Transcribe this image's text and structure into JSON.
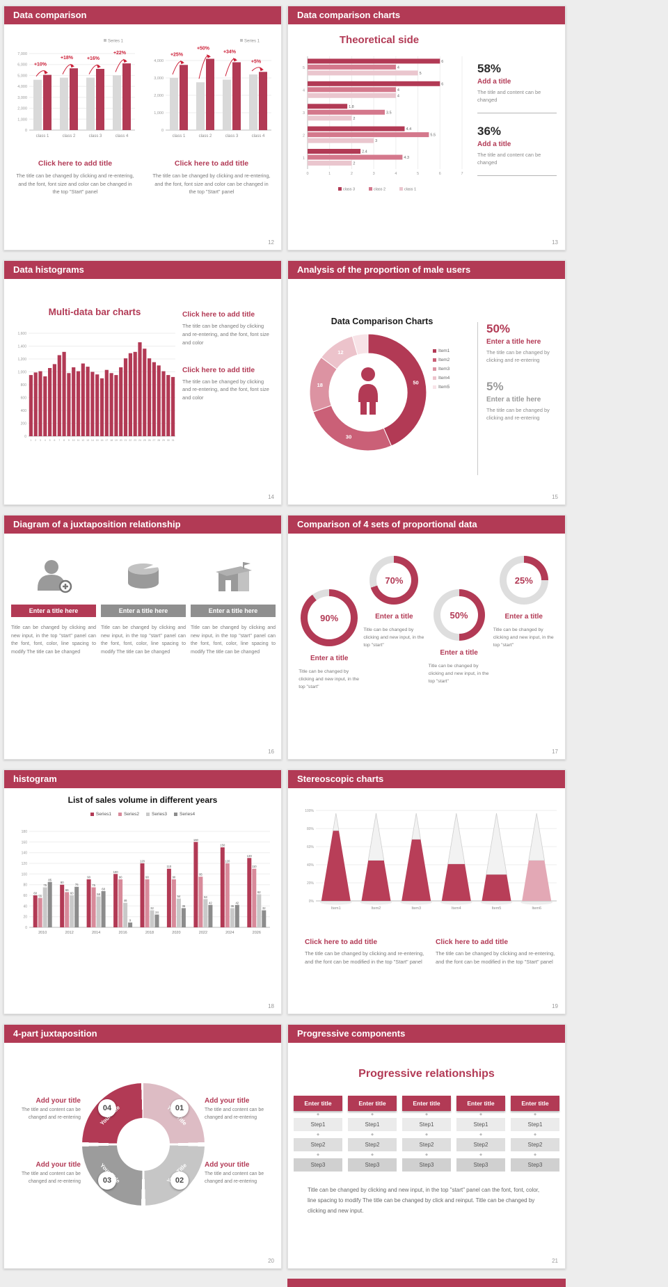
{
  "colors": {
    "accent": "#b23a55",
    "accent_red": "#cc2038",
    "bar_gray": "#d9d9d9",
    "series_pink": "#d4788c",
    "series_pink_light": "#eac6ce",
    "donut_colors": [
      "#b23a55",
      "#ca6077",
      "#dc93a2",
      "#ecc3cb",
      "#f7e3e7"
    ],
    "sales_series_colors": [
      "#b23a55",
      "#d88a9a",
      "#c9c9c9",
      "#8c8c8c"
    ],
    "cone_red": "#b83e58",
    "cone_pink": "#e3a8b5"
  },
  "slide1": {
    "header": "Data comparison",
    "page": "12",
    "panels": [
      {
        "title": "Click here to add title",
        "body": "The title can be changed by clicking and re-entering, and the font, font size and color can be changed in the top \"Start\" panel",
        "chart": {
          "type": "bar",
          "legend": "Series 1",
          "categories": [
            "class 1",
            "class 2",
            "class 3",
            "class 4"
          ],
          "series": [
            {
              "name": "base",
              "values": [
                4600,
                4800,
                4800,
                5000
              ]
            },
            {
              "name": "Series 1",
              "values": [
                5050,
                5650,
                5600,
                6100
              ]
            }
          ],
          "growth_labels": [
            "+10%",
            "+18%",
            "+16%",
            "+22%"
          ],
          "ylim": [
            0,
            7000
          ],
          "yticks": [
            0,
            1000,
            2000,
            3000,
            4000,
            5000,
            6000,
            7000
          ]
        }
      },
      {
        "title": "Click here to add title",
        "body": "The title can be changed by clicking and re-entering, and the font, font size and color can be changed in the top \"Start\" panel",
        "chart": {
          "type": "bar",
          "legend": "Series 1",
          "categories": [
            "class 1",
            "class 2",
            "class 3",
            "class 4"
          ],
          "series": [
            {
              "name": "base",
              "values": [
                3000,
                2750,
                2900,
                3200
              ]
            },
            {
              "name": "Series 1",
              "values": [
                3750,
                4100,
                3900,
                3350
              ]
            }
          ],
          "growth_labels": [
            "+25%",
            "+50%",
            "+34%",
            "+5%"
          ],
          "ylim": [
            0,
            4400
          ],
          "yticks": [
            0,
            1000,
            2000,
            3000,
            4000
          ]
        }
      }
    ]
  },
  "slide2": {
    "header": "Data comparison charts",
    "page": "13",
    "chart_title": "Theoretical side",
    "chart": {
      "type": "bar-horizontal",
      "xlim": [
        0,
        7
      ],
      "categories": [
        "5",
        "4",
        "3",
        "2",
        "1"
      ],
      "series": [
        {
          "name": "class 3",
          "values": [
            6,
            6,
            1.8,
            4.4,
            2.4
          ]
        },
        {
          "name": "class 2",
          "values": [
            4,
            4,
            3.5,
            5.5,
            4.3
          ]
        },
        {
          "name": "class 1",
          "values": [
            5,
            4,
            2,
            3,
            2
          ]
        }
      ]
    },
    "stats": [
      {
        "pct": "58%",
        "title": "Add a title",
        "body": "The title and content can be changed"
      },
      {
        "pct": "36%",
        "title": "Add a title",
        "body": "The title and content can be changed"
      }
    ]
  },
  "slide3": {
    "header": "Data histograms",
    "page": "14",
    "chart_title": "Multi-data bar charts",
    "chart": {
      "type": "bar",
      "x_labels": [
        "1",
        "2",
        "3",
        "4",
        "5",
        "6",
        "7",
        "8",
        "9",
        "10",
        "11",
        "12",
        "13",
        "14",
        "15",
        "16",
        "17",
        "18",
        "19",
        "20",
        "21",
        "22",
        "23",
        "24",
        "25",
        "26",
        "27",
        "28",
        "29",
        "30",
        "31"
      ],
      "values": [
        950,
        990,
        1010,
        930,
        1060,
        1120,
        1260,
        1310,
        980,
        1070,
        1010,
        1130,
        1080,
        1000,
        960,
        900,
        1030,
        980,
        950,
        1070,
        1210,
        1290,
        1310,
        1460,
        1360,
        1210,
        1150,
        1100,
        1010,
        950,
        920
      ],
      "ylim": [
        0,
        1600
      ],
      "ytick_step": 200
    },
    "blocks": [
      {
        "title": "Click here to add title",
        "body": "The title can be changed by clicking and re-entering, and the font, font size and color"
      },
      {
        "title": "Click here to add title",
        "body": "The title can be changed by clicking and re-entering, and the font, font size and color"
      }
    ]
  },
  "slide4": {
    "header": "Analysis of the proportion of male users",
    "page": "15",
    "chart_title": "Data Comparison Charts",
    "chart": {
      "type": "pie",
      "labels": [
        "Item1",
        "Item2",
        "Item3",
        "Item4",
        "Item5"
      ],
      "values": [
        50,
        30,
        18,
        12,
        5
      ]
    },
    "stats": [
      {
        "pct": "50%",
        "title": "Enter a title here",
        "body": "The title can be changed by clicking and re-entering"
      },
      {
        "pct": "5%",
        "title": "Enter a title here",
        "body": "The title can be changed by clicking and re-entering"
      }
    ]
  },
  "slide5": {
    "header": "Diagram of a juxtaposition relationship",
    "page": "16",
    "items": [
      {
        "icon": "person-plus-icon",
        "title": "Enter a title here",
        "body": "Title can be changed by clicking and new input, in the top \"start\" panel can the font, font, color, line spacing to modify The title can be changed"
      },
      {
        "icon": "cake-icon",
        "title": "Enter a title here",
        "body": "Title can be changed by clicking and new input, in the top \"start\" panel can the font, font, color, line spacing to modify The title can be changed"
      },
      {
        "icon": "building-icon",
        "title": "Enter a title here",
        "body": "Title can be changed by clicking and new input, in the top \"start\" panel can the font, font, color, line spacing to modify The title can be changed"
      }
    ]
  },
  "slide6": {
    "header": "Comparison of 4 sets of proportional data",
    "page": "17",
    "items": [
      {
        "pct": "90%",
        "title": "Enter a title",
        "body": "Title can be changed by clicking and new input, in the top \"start\""
      },
      {
        "pct": "70%",
        "title": "Enter a title",
        "body": "Title can be changed by clicking and new input, in the top \"start\""
      },
      {
        "pct": "50%",
        "title": "Enter a title",
        "body": "Title can be changed by clicking and new input, in the top \"start\""
      },
      {
        "pct": "25%",
        "title": "Enter a title",
        "body": "Title can be changed by clicking and new input, in the top \"start\""
      }
    ]
  },
  "slide7": {
    "header": "histogram",
    "page": "18",
    "chart_title": "List of sales volume in different years",
    "chart": {
      "type": "bar",
      "categories": [
        "2010",
        "2012",
        "2014",
        "2016",
        "2018",
        "2020",
        "2022",
        "2024",
        "2026"
      ],
      "series": [
        {
          "name": "Series1",
          "values": [
            60,
            80,
            90,
            100,
            120,
            110,
            160,
            150,
            130
          ]
        },
        {
          "name": "Series2",
          "values": [
            55,
            66,
            75,
            90,
            90,
            90,
            95,
            120,
            110
          ]
        },
        {
          "name": "Series3",
          "values": [
            75,
            60,
            58,
            46,
            32,
            54,
            53,
            36,
            62
          ]
        },
        {
          "name": "Series4",
          "values": [
            85,
            76,
            68,
            9,
            24,
            36,
            42,
            42,
            32
          ]
        }
      ],
      "ylim": [
        0,
        180
      ],
      "ytick_step": 20
    }
  },
  "slide8": {
    "header": "Stereoscopic charts",
    "page": "19",
    "chart": {
      "type": "cone",
      "categories": [
        "Item1",
        "Item2",
        "Item3",
        "Item4",
        "Item5",
        "Item6"
      ],
      "values_pct": [
        80,
        46,
        70,
        42,
        30,
        46
      ],
      "yticks": [
        "0%",
        "20%",
        "40%",
        "60%",
        "80%",
        "100%"
      ]
    },
    "blocks": [
      {
        "title": "Click here to add title",
        "body": "The title can be changed by clicking and re-entering, and the font can be modified in the top \"Start\" panel"
      },
      {
        "title": "Click here to add title",
        "body": "The title can be changed by clicking and re-entering, and the font can be modified in the top \"Start\" panel"
      }
    ]
  },
  "slide9": {
    "header": "4-part juxtaposition",
    "page": "20",
    "segments": [
      {
        "num": "01",
        "label": "Your Title"
      },
      {
        "num": "02",
        "label": "Your Title"
      },
      {
        "num": "03",
        "label": "Your Title"
      },
      {
        "num": "04",
        "label": "Your Title"
      }
    ],
    "blocks": [
      {
        "title": "Add your title",
        "body": "The title and content can be changed and re-entering"
      },
      {
        "title": "Add your title",
        "body": "The title and content can be changed and re-entering"
      },
      {
        "title": "Add your title",
        "body": "The title and content can be changed and re-entering"
      },
      {
        "title": "Add your title",
        "body": "The title and content can be changed and re-entering"
      }
    ]
  },
  "slide10": {
    "header": "Progressive components",
    "page": "21",
    "title": "Progressive relationships",
    "columns": [
      {
        "header": "Enter title",
        "steps": [
          "Step1",
          "Step2",
          "Step3"
        ]
      },
      {
        "header": "Enter title",
        "steps": [
          "Step1",
          "Step2",
          "Step3"
        ]
      },
      {
        "header": "Enter title",
        "steps": [
          "Step1",
          "Step2",
          "Step3"
        ]
      },
      {
        "header": "Enter title",
        "steps": [
          "Step1",
          "Step2",
          "Step3"
        ]
      },
      {
        "header": "Enter title",
        "steps": [
          "Step1",
          "Step2",
          "Step3"
        ]
      }
    ],
    "body": "Title can be changed by clicking and new input, in the top \"start\" panel can the font, font, color, line spacing to modify The title can be changed by click and reinput. Title can be changed by clicking and new input."
  }
}
